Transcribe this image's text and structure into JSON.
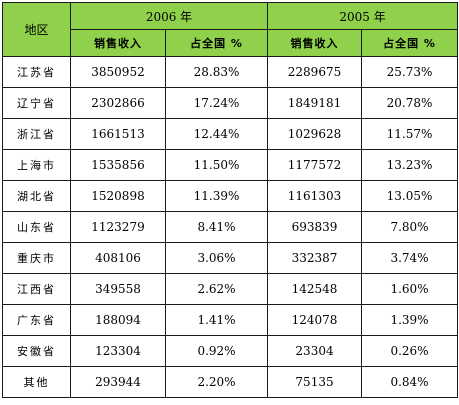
{
  "table": {
    "region_header": "地区",
    "year_2006": "2006 年",
    "year_2005": "2005 年",
    "col_revenue": "销售收入",
    "col_share": "占全国 %",
    "rows": [
      {
        "region": "江苏省",
        "rev2006": "3850952",
        "share2006": "28.83%",
        "rev2005": "2289675",
        "share2005": "25.73%"
      },
      {
        "region": "辽宁省",
        "rev2006": "2302866",
        "share2006": "17.24%",
        "rev2005": "1849181",
        "share2005": "20.78%"
      },
      {
        "region": "浙江省",
        "rev2006": "1661513",
        "share2006": "12.44%",
        "rev2005": "1029628",
        "share2005": "11.57%"
      },
      {
        "region": "上海市",
        "rev2006": "1535856",
        "share2006": "11.50%",
        "rev2005": "1177572",
        "share2005": "13.23%"
      },
      {
        "region": "湖北省",
        "rev2006": "1520898",
        "share2006": "11.39%",
        "rev2005": "1161303",
        "share2005": "13.05%"
      },
      {
        "region": "山东省",
        "rev2006": "1123279",
        "share2006": "8.41%",
        "rev2005": "693839",
        "share2005": "7.80%"
      },
      {
        "region": "重庆市",
        "rev2006": "408106",
        "share2006": "3.06%",
        "rev2005": "332387",
        "share2005": "3.74%"
      },
      {
        "region": "江西省",
        "rev2006": "349558",
        "share2006": "2.62%",
        "rev2005": "142548",
        "share2005": "1.60%"
      },
      {
        "region": "广东省",
        "rev2006": "188094",
        "share2006": "1.41%",
        "rev2005": "124078",
        "share2005": "1.39%"
      },
      {
        "region": "安徽省",
        "rev2006": "123304",
        "share2006": "0.92%",
        "rev2005": "23304",
        "share2005": "0.26%"
      },
      {
        "region": "其他",
        "rev2006": "293944",
        "share2006": "2.20%",
        "rev2005": "75135",
        "share2005": "0.84%"
      }
    ]
  },
  "colors": {
    "header_background": "#8fd14a",
    "border": "#1a1a1a"
  }
}
